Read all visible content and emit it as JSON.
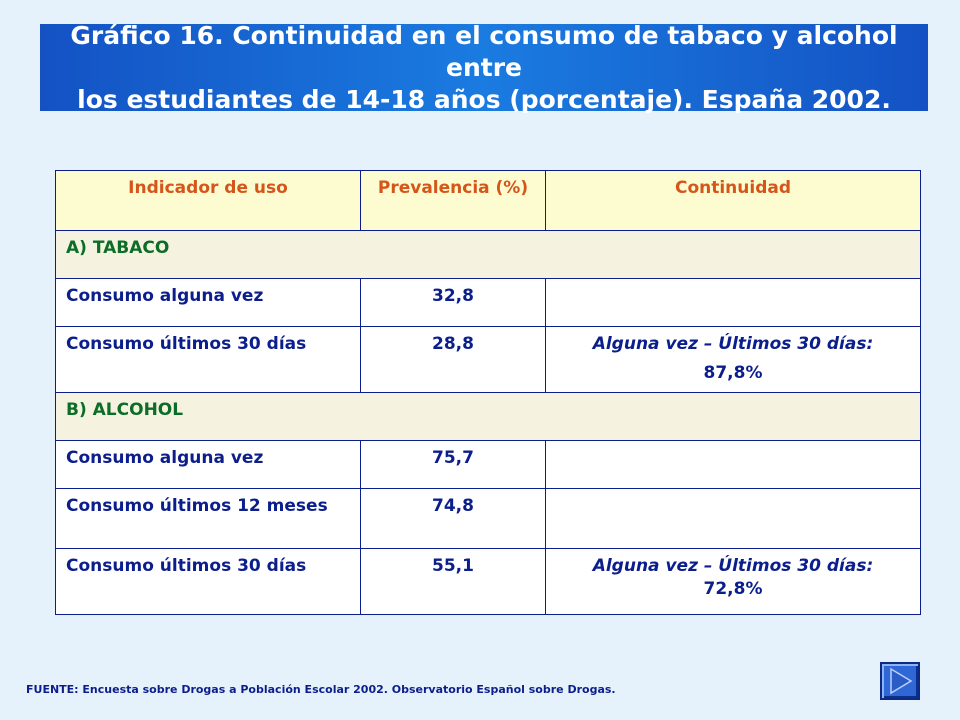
{
  "title": {
    "line1": "Gráfico 16. Continuidad en el consumo de tabaco y alcohol entre",
    "line2": "los estudiantes de 14-18 años (porcentaje). España 2002."
  },
  "table": {
    "headers": [
      "Indicador de uso",
      "Prevalencia (%)",
      "Continuidad"
    ],
    "sections": [
      {
        "label": "A) TABACO",
        "rows": [
          {
            "indicator": "Consumo alguna vez",
            "prevalence": "32,8",
            "continuity_label": "",
            "continuity_value": ""
          },
          {
            "indicator": "Consumo últimos 30 días",
            "prevalence": "28,8",
            "continuity_label": "Alguna vez – Últimos 30 días:",
            "continuity_value": "87,8%"
          }
        ]
      },
      {
        "label": "B) ALCOHOL",
        "rows": [
          {
            "indicator": "Consumo alguna vez",
            "prevalence": "75,7",
            "continuity_label": "",
            "continuity_value": ""
          },
          {
            "indicator": "Consumo últimos 12 meses",
            "prevalence": "74,8",
            "continuity_label": "",
            "continuity_value": ""
          },
          {
            "indicator": "Consumo últimos 30 días",
            "prevalence": "55,1",
            "continuity_label": "Alguna vez – Últimos 30 días:",
            "continuity_value": "72,8%"
          }
        ]
      }
    ]
  },
  "source": "FUENTE: Encuesta sobre Drogas a Población Escolar 2002. Observatorio Español sobre Drogas.",
  "nav": {
    "icon": "play-next-icon"
  }
}
